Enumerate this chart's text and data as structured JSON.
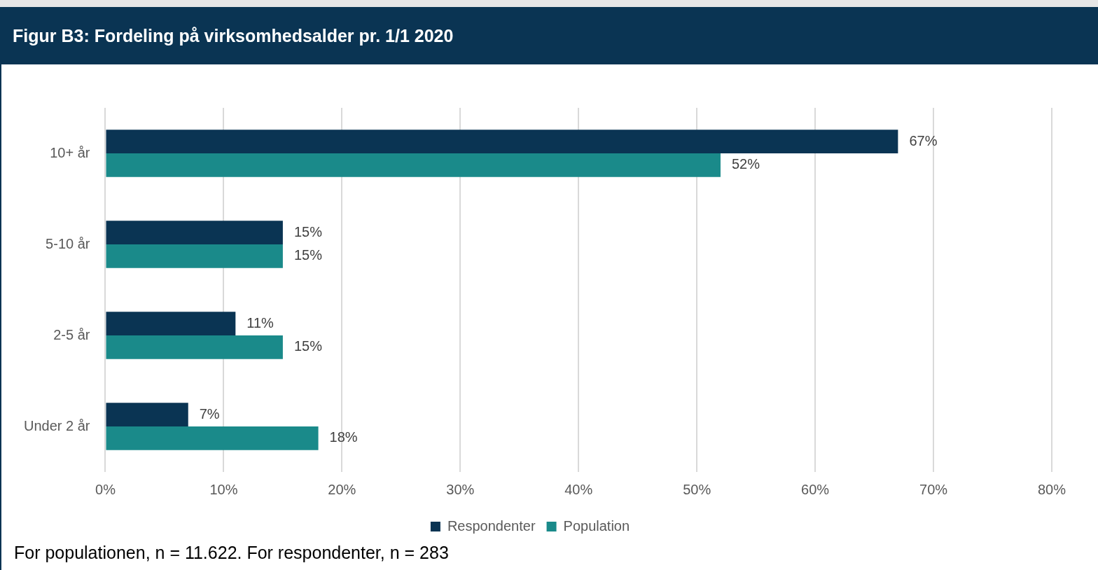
{
  "chart_data": {
    "type": "bar",
    "orientation": "horizontal",
    "title": "Figur B3: Fordeling på virksomhedsalder pr. 1/1 2020",
    "categories": [
      "10+ år",
      "5-10 år",
      "2-5 år",
      "Under 2 år"
    ],
    "series": [
      {
        "name": "Respondenter",
        "color": "#0a3453",
        "values": [
          67,
          15,
          11,
          7
        ],
        "value_labels": [
          "67%",
          "15%",
          "11%",
          "7%"
        ]
      },
      {
        "name": "Population",
        "color": "#1a8a8a",
        "values": [
          52,
          15,
          15,
          18
        ],
        "value_labels": [
          "52%",
          "15%",
          "15%",
          "18%"
        ]
      }
    ],
    "xlim": [
      0,
      80
    ],
    "xticks": [
      {
        "value": 0,
        "label": "0%"
      },
      {
        "value": 10,
        "label": "10%"
      },
      {
        "value": 20,
        "label": "20%"
      },
      {
        "value": 30,
        "label": "30%"
      },
      {
        "value": 40,
        "label": "40%"
      },
      {
        "value": 50,
        "label": "50%"
      },
      {
        "value": 60,
        "label": "60%"
      },
      {
        "value": 70,
        "label": "70%"
      },
      {
        "value": 80,
        "label": "80%"
      }
    ],
    "grid": "x",
    "legend": "bottom",
    "annotations": [
      "For populationen, n = 11.622. For respondenter, n = 283"
    ]
  }
}
